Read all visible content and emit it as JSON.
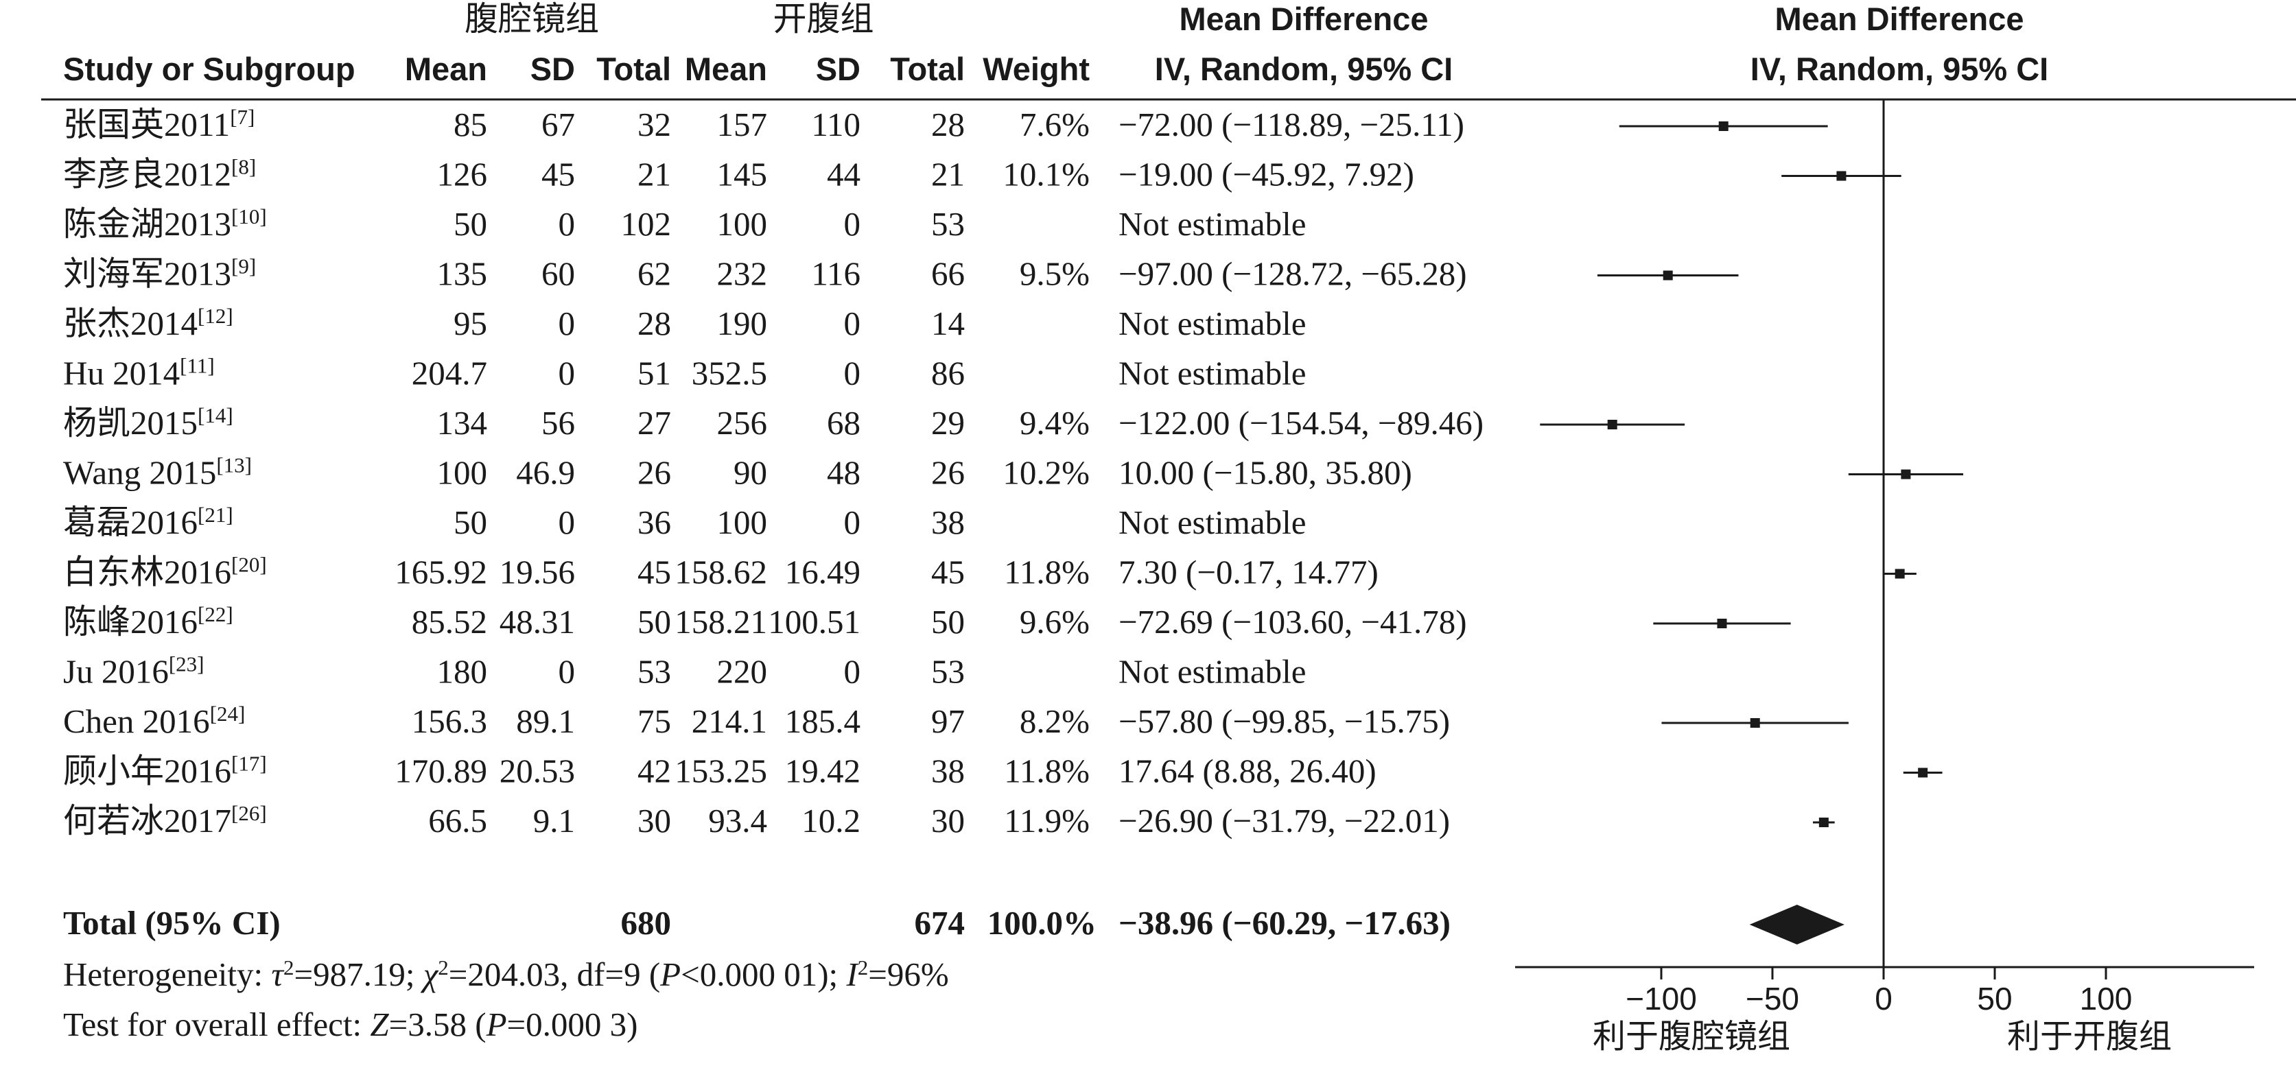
{
  "headers": {
    "group_experimental": "腹腔镜组",
    "group_control": "开腹组",
    "study": "Study or Subgroup",
    "mean": "Mean",
    "sd": "SD",
    "total": "Total",
    "weight": "Weight",
    "md_title": "Mean Difference",
    "md_method": "IV, Random, 95% CI",
    "plot_title": "Mean Difference",
    "plot_method": "IV, Random, 95% CI"
  },
  "chart_data": {
    "type": "forest",
    "studies": [
      {
        "name": "张国英2011",
        "ref": "[7]",
        "e_mean": "85",
        "e_sd": "67",
        "e_total": "32",
        "c_mean": "157",
        "c_sd": "110",
        "c_total": "28",
        "weight": "7.6%",
        "ci_text": "−72.00 (−118.89, −25.11)",
        "md": -72.0,
        "lo": -118.89,
        "hi": -25.11
      },
      {
        "name": "李彦良2012",
        "ref": "[8]",
        "e_mean": "126",
        "e_sd": "45",
        "e_total": "21",
        "c_mean": "145",
        "c_sd": "44",
        "c_total": "21",
        "weight": "10.1%",
        "ci_text": "−19.00 (−45.92, 7.92)",
        "md": -19.0,
        "lo": -45.92,
        "hi": 7.92
      },
      {
        "name": "陈金湖2013",
        "ref": "[10]",
        "e_mean": "50",
        "e_sd": "0",
        "e_total": "102",
        "c_mean": "100",
        "c_sd": "0",
        "c_total": "53",
        "weight": "",
        "ci_text": "Not estimable",
        "md": null,
        "lo": null,
        "hi": null
      },
      {
        "name": "刘海军2013",
        "ref": "[9]",
        "e_mean": "135",
        "e_sd": "60",
        "e_total": "62",
        "c_mean": "232",
        "c_sd": "116",
        "c_total": "66",
        "weight": "9.5%",
        "ci_text": "−97.00 (−128.72, −65.28)",
        "md": -97.0,
        "lo": -128.72,
        "hi": -65.28
      },
      {
        "name": "张杰2014",
        "ref": "[12]",
        "e_mean": "95",
        "e_sd": "0",
        "e_total": "28",
        "c_mean": "190",
        "c_sd": "0",
        "c_total": "14",
        "weight": "",
        "ci_text": "Not estimable",
        "md": null,
        "lo": null,
        "hi": null
      },
      {
        "name": "Hu 2014",
        "ref": "[11]",
        "e_mean": "204.7",
        "e_sd": "0",
        "e_total": "51",
        "c_mean": "352.5",
        "c_sd": "0",
        "c_total": "86",
        "weight": "",
        "ci_text": "Not estimable",
        "md": null,
        "lo": null,
        "hi": null
      },
      {
        "name": "杨凯2015",
        "ref": "[14]",
        "e_mean": "134",
        "e_sd": "56",
        "e_total": "27",
        "c_mean": "256",
        "c_sd": "68",
        "c_total": "29",
        "weight": "9.4%",
        "ci_text": "−122.00 (−154.54, −89.46)",
        "md": -122.0,
        "lo": -154.54,
        "hi": -89.46
      },
      {
        "name": "Wang 2015",
        "ref": "[13]",
        "e_mean": "100",
        "e_sd": "46.9",
        "e_total": "26",
        "c_mean": "90",
        "c_sd": "48",
        "c_total": "26",
        "weight": "10.2%",
        "ci_text": "10.00 (−15.80, 35.80)",
        "md": 10.0,
        "lo": -15.8,
        "hi": 35.8
      },
      {
        "name": "葛磊2016",
        "ref": "[21]",
        "e_mean": "50",
        "e_sd": "0",
        "e_total": "36",
        "c_mean": "100",
        "c_sd": "0",
        "c_total": "38",
        "weight": "",
        "ci_text": "Not estimable",
        "md": null,
        "lo": null,
        "hi": null
      },
      {
        "name": "白东林2016",
        "ref": "[20]",
        "e_mean": "165.92",
        "e_sd": "19.56",
        "e_total": "45",
        "c_mean": "158.62",
        "c_sd": "16.49",
        "c_total": "45",
        "weight": "11.8%",
        "ci_text": "7.30 (−0.17, 14.77)",
        "md": 7.3,
        "lo": -0.17,
        "hi": 14.77
      },
      {
        "name": "陈峰2016",
        "ref": "[22]",
        "e_mean": "85.52",
        "e_sd": "48.31",
        "e_total": "50",
        "c_mean": "158.21",
        "c_sd": "100.51",
        "c_total": "50",
        "weight": "9.6%",
        "ci_text": "−72.69 (−103.60, −41.78)",
        "md": -72.69,
        "lo": -103.6,
        "hi": -41.78
      },
      {
        "name": "Ju 2016",
        "ref": "[23]",
        "e_mean": "180",
        "e_sd": "0",
        "e_total": "53",
        "c_mean": "220",
        "c_sd": "0",
        "c_total": "53",
        "weight": "",
        "ci_text": "Not estimable",
        "md": null,
        "lo": null,
        "hi": null
      },
      {
        "name": "Chen 2016",
        "ref": "[24]",
        "e_mean": "156.3",
        "e_sd": "89.1",
        "e_total": "75",
        "c_mean": "214.1",
        "c_sd": "185.4",
        "c_total": "97",
        "weight": "8.2%",
        "ci_text": "−57.80 (−99.85, −15.75)",
        "md": -57.8,
        "lo": -99.85,
        "hi": -15.75
      },
      {
        "name": "顾小年2016",
        "ref": "[17]",
        "e_mean": "170.89",
        "e_sd": "20.53",
        "e_total": "42",
        "c_mean": "153.25",
        "c_sd": "19.42",
        "c_total": "38",
        "weight": "11.8%",
        "ci_text": "17.64 (8.88, 26.40)",
        "md": 17.64,
        "lo": 8.88,
        "hi": 26.4
      },
      {
        "name": "何若冰2017",
        "ref": "[26]",
        "e_mean": "66.5",
        "e_sd": "9.1",
        "e_total": "30",
        "c_mean": "93.4",
        "c_sd": "10.2",
        "c_total": "30",
        "weight": "11.9%",
        "ci_text": "−26.90 (−31.79, −22.01)",
        "md": -26.9,
        "lo": -31.79,
        "hi": -22.01
      }
    ],
    "total": {
      "label": "Total (95% CI)",
      "e_total": "680",
      "c_total": "674",
      "weight": "100.0%",
      "ci_text": "−38.96 (−60.29, −17.63)",
      "md": -38.96,
      "lo": -60.29,
      "hi": -17.63
    },
    "heterogeneity": {
      "prefix": "Heterogeneity: ",
      "tau": "τ",
      "tau_val": "=987.19; ",
      "chi": "χ",
      "chi_val": "=204.03, df=9 (",
      "p_sym": "P",
      "p_val": "<0.000 01); ",
      "i_sym": "I",
      "i_val": "=96%"
    },
    "overall": {
      "prefix": "Test for overall effect: ",
      "z_sym": "Z",
      "z_val": "=3.58 (",
      "p_sym": "P",
      "p_val": "=0.000 3)"
    },
    "axis": {
      "xlim": [
        -150,
        150
      ],
      "ticks": [
        -100,
        -50,
        0,
        50,
        100
      ],
      "tick_labels": [
        "−100",
        "−50",
        "0",
        "50",
        "100"
      ],
      "left_label": "利于腹腔镜组",
      "right_label": "利于开腹组"
    }
  }
}
